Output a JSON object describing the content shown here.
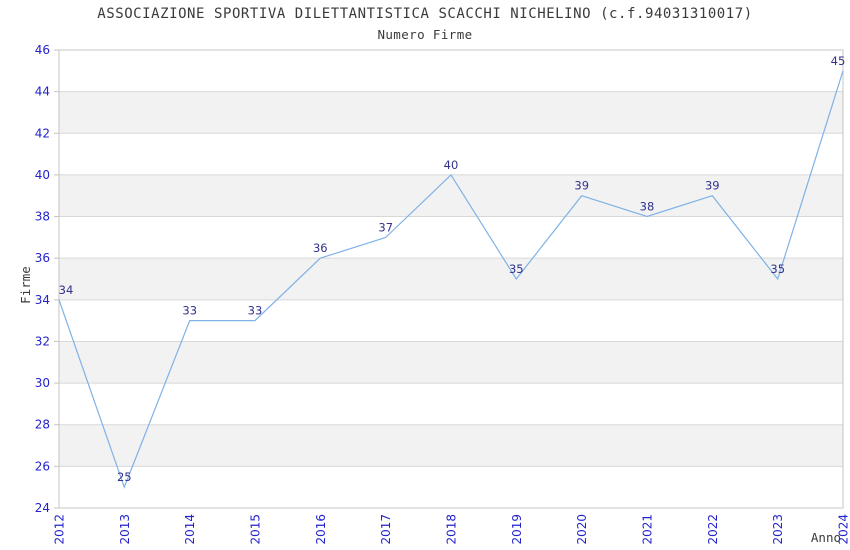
{
  "chart": {
    "title": "ASSOCIAZIONE SPORTIVA DILETTANTISTICA SCACCHI NICHELINO (c.f.94031310017)",
    "subtitle": "Numero Firme"
  },
  "chart_data": {
    "type": "line",
    "title": "ASSOCIAZIONE SPORTIVA DILETTANTISTICA SCACCHI NICHELINO (c.f.94031310017)",
    "subtitle": "Numero Firme",
    "xlabel": "Anno",
    "ylabel": "Firme",
    "categories": [
      "2012",
      "2013",
      "2014",
      "2015",
      "2016",
      "2017",
      "2018",
      "2019",
      "2020",
      "2021",
      "2022",
      "2023",
      "2024"
    ],
    "values": [
      34,
      25,
      33,
      33,
      36,
      37,
      40,
      35,
      39,
      38,
      39,
      35,
      45
    ],
    "ylim": [
      24,
      46
    ],
    "ytick_step": 2,
    "grid": true,
    "legend": "none",
    "layout": {
      "x_tick_rotation": -90,
      "band_pattern": "alternating-2-unit"
    },
    "colors": {
      "line": "#7fb2e6",
      "tick_label": "#2323cd",
      "data_label": "#32328c",
      "band": "#f2f2f2",
      "gridline": "#d8d8d8",
      "border": "#c4c4c4",
      "text": "#3a3a3a",
      "background": "#ffffff"
    }
  }
}
